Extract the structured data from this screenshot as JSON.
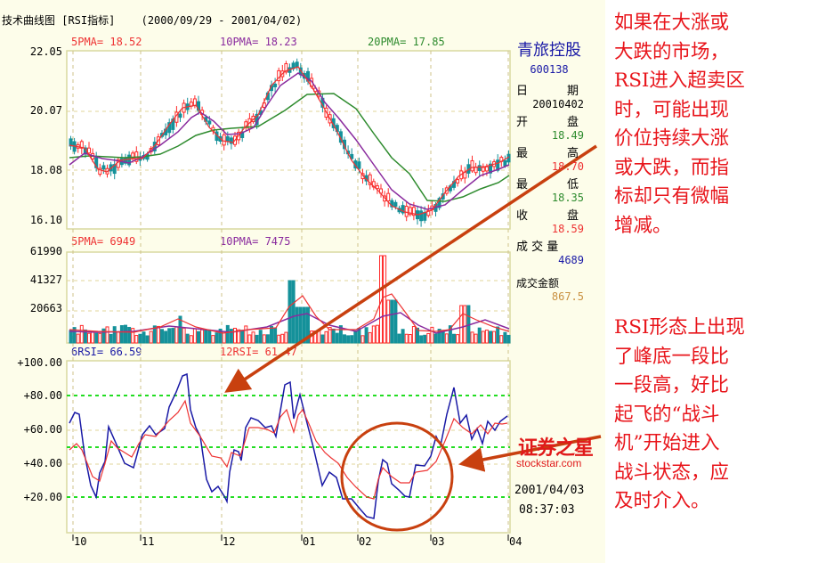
{
  "header": {
    "title": "技术曲线图 [RSI指标]",
    "date_range": "(2000/09/29 - 2001/04/02)"
  },
  "price_panel": {
    "ma_labels": [
      {
        "text": "5PMA= 18.52",
        "color": "#ee3333"
      },
      {
        "text": "10PMA= 18.23",
        "color": "#8a2b9e"
      },
      {
        "text": "20PMA= 17.85",
        "color": "#2e8b2e"
      }
    ],
    "y_ticks": [
      "22.05",
      "20.07",
      "18.08",
      "16.10"
    ]
  },
  "volume_panel": {
    "ma_labels": [
      {
        "text": "5PMA= 6949",
        "color": "#ee3333"
      },
      {
        "text": "10PMA= 7475",
        "color": "#8a2b9e"
      }
    ],
    "y_ticks": [
      "61990",
      "41327",
      "20663"
    ]
  },
  "rsi_panel": {
    "labels": [
      {
        "text": "6RSI= 66.59",
        "color": "#1a1aa6"
      },
      {
        "text": "12RSI= 61.47",
        "color": "#ee3333"
      }
    ],
    "y_ticks": [
      "+100.00",
      "+80.00",
      "+60.00",
      "+40.00",
      "+20.00"
    ]
  },
  "x_axis": {
    "ticks": [
      "10",
      "11",
      "12",
      "01",
      "02",
      "03",
      "04"
    ]
  },
  "info_panel": {
    "stock_name": "青旅控股",
    "stock_code": "600138",
    "date_label_left": "日",
    "date_label_right": "期",
    "date_value": "20010402",
    "open_left": "开",
    "open_right": "盘",
    "open_value": "18.49",
    "high_left": "最",
    "high_right": "高",
    "high_value": "18.70",
    "low_left": "最",
    "low_right": "低",
    "low_value": "18.35",
    "close_left": "收",
    "close_right": "盘",
    "close_value": "18.59",
    "volume_label": "成 交 量",
    "volume_value": "4689",
    "amount_label": "成交金额",
    "amount_value": "867.5",
    "brand_cn": "证券之星",
    "brand_url": "stockstar.com",
    "timestamp_date": "2001/04/03",
    "timestamp_time": "08:37:03"
  },
  "annotations": {
    "top": [
      "如果在大涨或",
      "大跌的市场，",
      "RSI进入超卖区",
      "时，可能出现",
      "价位持续大涨",
      "或大跌，而指",
      "标却只有微幅",
      "增减。"
    ],
    "bottom": [
      "RSI形态上出现",
      "了峰底一段比",
      "一段高，好比",
      "起飞的“战斗",
      "机”开始进入",
      "战斗状态，应",
      "及时介入。"
    ]
  },
  "colors": {
    "up": "#ff2a2a",
    "down": "#15919a",
    "ma5": "#ee3333",
    "ma10": "#8a2b9e",
    "ma20": "#2e8b2e",
    "rsi6": "#1a1aa6",
    "rsi12": "#ee3333",
    "arrow": "#c8400f",
    "guide": "#22dd22"
  },
  "chart_data": [
    {
      "type": "line",
      "title": "技术曲线图 [RSI指标] 价格 (2000/09/29 - 2001/04/02)",
      "x": [
        "10",
        "11",
        "12",
        "01",
        "02",
        "03",
        "04"
      ],
      "ylim": [
        16.1,
        22.05
      ],
      "y_ticks": [
        22.05,
        20.07,
        18.08,
        16.1
      ],
      "series": [
        {
          "name": "5PMA",
          "last": 18.52,
          "values": [
            18.7,
            18.4,
            18.9,
            20.3,
            19.0,
            20.2,
            21.7,
            18.6,
            16.9,
            17.5,
            18.6
          ]
        },
        {
          "name": "10PMA",
          "last": 18.23,
          "values": [
            18.5,
            18.5,
            18.8,
            20.0,
            19.3,
            20.0,
            21.2,
            19.5,
            17.1,
            17.4,
            18.3
          ]
        },
        {
          "name": "20PMA",
          "last": 17.85,
          "values": [
            18.6,
            18.6,
            18.6,
            19.4,
            19.5,
            19.9,
            20.8,
            20.2,
            17.8,
            17.3,
            17.9
          ]
        }
      ],
      "grid": true
    },
    {
      "type": "bar",
      "title": "成交量",
      "ylim": [
        0,
        61990
      ],
      "y_ticks": [
        61990,
        41327,
        20663
      ],
      "series": [
        {
          "name": "5PMA",
          "last": 6949
        },
        {
          "name": "10PMA",
          "last": 7475
        }
      ],
      "grid": true
    },
    {
      "type": "line",
      "title": "RSI",
      "x": [
        "10",
        "11",
        "12",
        "01",
        "02",
        "03",
        "04"
      ],
      "ylim": [
        0,
        100
      ],
      "y_ticks": [
        100,
        80,
        60,
        40,
        20
      ],
      "reference_lines": [
        80,
        50,
        20
      ],
      "series": [
        {
          "name": "6RSI",
          "last": 66.59,
          "values": [
            64,
            71,
            20,
            67,
            38,
            68,
            92,
            29,
            23,
            70,
            88,
            62,
            75,
            45,
            28,
            20,
            6,
            38,
            20,
            40,
            86,
            60,
            66
          ]
        },
        {
          "name": "12RSI",
          "last": 61.47,
          "values": [
            48,
            52,
            30,
            54,
            41,
            56,
            78,
            45,
            38,
            60,
            77,
            63,
            72,
            55,
            43,
            34,
            20,
            38,
            30,
            38,
            70,
            58,
            61
          ]
        }
      ],
      "grid": true
    }
  ]
}
